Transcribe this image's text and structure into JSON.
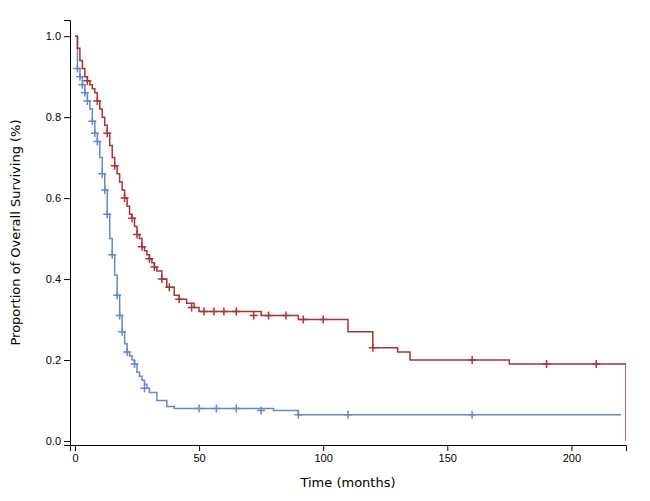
{
  "chart_data": {
    "type": "step",
    "xlabel": "Time (months)",
    "ylabel": "Proportion of Overall Surviving (%)",
    "xlim": [
      -2,
      222
    ],
    "ylim": [
      -0.01,
      1.04
    ],
    "xticks": [
      0,
      50,
      100,
      150,
      200
    ],
    "yticks": [
      {
        "value": 0.0,
        "label": "0.0"
      },
      0.2,
      0.4,
      0.6,
      0.8,
      {
        "value": 1.0,
        "label": "1.0"
      }
    ],
    "grid": false,
    "series": [
      {
        "color": "#6688cc",
        "x": [
          0,
          0.5,
          1,
          1.5,
          2,
          2.5,
          3,
          3.5,
          4,
          4.5,
          5,
          5.5,
          6,
          7,
          8,
          9,
          10,
          11,
          12,
          13,
          14,
          15,
          16,
          17,
          18,
          19,
          20,
          21,
          22,
          23,
          24,
          25,
          26,
          27,
          28,
          29,
          30,
          33,
          37,
          40,
          50,
          60,
          70,
          80,
          90,
          100,
          110,
          115,
          160,
          220
        ],
        "values": [
          1.0,
          1.0,
          0.92,
          0.92,
          0.9,
          0.9,
          0.88,
          0.88,
          0.86,
          0.86,
          0.84,
          0.84,
          0.82,
          0.79,
          0.76,
          0.74,
          0.7,
          0.66,
          0.62,
          0.56,
          0.5,
          0.46,
          0.41,
          0.36,
          0.31,
          0.27,
          0.24,
          0.22,
          0.21,
          0.2,
          0.19,
          0.17,
          0.16,
          0.15,
          0.14,
          0.13,
          0.12,
          0.1,
          0.085,
          0.08,
          0.08,
          0.08,
          0.08,
          0.075,
          0.065,
          0.065,
          0.065,
          0.065,
          0.065,
          0.065
        ],
        "censor_color": "#6688cc",
        "censor_x": [
          1,
          2,
          3,
          4,
          5,
          7,
          8,
          9,
          11,
          12,
          13,
          15,
          17,
          18,
          19,
          21,
          24,
          28,
          50,
          57,
          65,
          75,
          90,
          110,
          160
        ],
        "censor_values": [
          0.92,
          0.9,
          0.88,
          0.86,
          0.84,
          0.79,
          0.76,
          0.74,
          0.66,
          0.62,
          0.56,
          0.46,
          0.36,
          0.31,
          0.27,
          0.22,
          0.19,
          0.13,
          0.08,
          0.08,
          0.08,
          0.075,
          0.065,
          0.065,
          0.065
        ]
      },
      {
        "color": "#aa3333",
        "x": [
          0,
          1,
          2,
          3,
          4,
          5,
          6,
          7,
          8,
          9,
          10,
          11,
          12,
          13,
          14,
          15,
          16,
          17,
          18,
          19,
          20,
          21,
          22,
          23,
          24,
          25,
          26,
          27,
          28,
          29,
          30,
          31,
          32,
          33,
          35,
          37,
          40,
          42,
          45,
          48,
          50,
          55,
          60,
          65,
          70,
          75,
          80,
          85,
          90,
          95,
          100,
          110,
          120,
          130,
          135,
          160,
          175,
          190,
          210,
          220,
          222
        ],
        "values": [
          1.0,
          0.97,
          0.94,
          0.92,
          0.9,
          0.89,
          0.88,
          0.87,
          0.86,
          0.84,
          0.82,
          0.8,
          0.78,
          0.76,
          0.73,
          0.7,
          0.68,
          0.66,
          0.64,
          0.62,
          0.6,
          0.58,
          0.56,
          0.55,
          0.53,
          0.51,
          0.5,
          0.48,
          0.47,
          0.46,
          0.45,
          0.44,
          0.43,
          0.42,
          0.4,
          0.38,
          0.36,
          0.35,
          0.34,
          0.33,
          0.32,
          0.32,
          0.32,
          0.32,
          0.32,
          0.31,
          0.31,
          0.31,
          0.3,
          0.3,
          0.3,
          0.27,
          0.23,
          0.22,
          0.2,
          0.2,
          0.19,
          0.19,
          0.19,
          0.19,
          0.0
        ],
        "censor_color": "#aa3333",
        "censor_x": [
          5,
          9,
          13,
          16,
          20,
          23,
          25,
          27,
          30,
          32,
          35,
          38,
          42,
          47,
          52,
          56,
          60,
          65,
          72,
          78,
          85,
          92,
          100,
          120,
          160,
          190,
          210
        ],
        "censor_values": [
          0.89,
          0.84,
          0.76,
          0.68,
          0.6,
          0.55,
          0.51,
          0.48,
          0.45,
          0.43,
          0.4,
          0.38,
          0.35,
          0.33,
          0.32,
          0.32,
          0.32,
          0.32,
          0.31,
          0.31,
          0.31,
          0.3,
          0.3,
          0.23,
          0.2,
          0.19,
          0.19
        ]
      }
    ]
  }
}
